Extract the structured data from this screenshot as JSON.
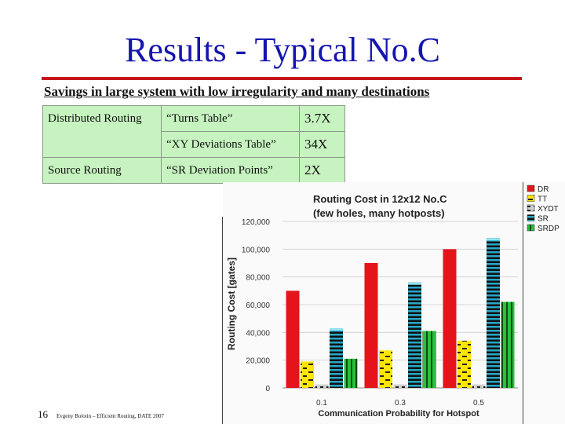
{
  "slide": {
    "title": "Results - Typical No.C",
    "subtitle": "Savings in large system with low irregularity and many destinations",
    "footer_page": "16",
    "footer_citation": "Evgeny Bolotin – Efficient Routing, DATE 2007"
  },
  "table": {
    "rows": [
      {
        "method": "Distributed Routing",
        "technique": "“Turns Table”",
        "ratio": "3.7X"
      },
      {
        "method": "",
        "technique": "“XY Deviations Table”",
        "ratio": "34X"
      },
      {
        "method": "Source Routing",
        "technique": "“SR Deviation Points”",
        "ratio": "2X"
      }
    ]
  },
  "colors": {
    "title": "#1515b0",
    "rule": "#c8161d",
    "table_bg": "#c6f3bf",
    "DR": "#e5141b",
    "TT": "#ffe500",
    "XYDT": "#c7c7c7",
    "SR": "#27a8c6",
    "SRDP": "#27c23a"
  },
  "chart_data": {
    "type": "bar",
    "title": "Routing Cost in 12x12 No.C",
    "subtitle": "(few holes, many hotposts)",
    "xlabel": "Communication Probability for Hotspot",
    "ylabel": "Routing Cost [gates]",
    "categories": [
      "0.1",
      "0.3",
      "0.5"
    ],
    "ylim": [
      0,
      120000
    ],
    "yticks": [
      "0",
      "20,000",
      "40,000",
      "60,000",
      "80,000",
      "100,000",
      "120,000"
    ],
    "legend_position": "top-right",
    "series": [
      {
        "name": "DR",
        "values": [
          70000,
          90000,
          100000
        ]
      },
      {
        "name": "TT",
        "values": [
          19000,
          27000,
          34000
        ]
      },
      {
        "name": "XYDT",
        "values": [
          2500,
          2500,
          2500
        ]
      },
      {
        "name": "SR",
        "values": [
          43000,
          76000,
          108000
        ]
      },
      {
        "name": "SRDP",
        "values": [
          21000,
          41000,
          62000
        ]
      }
    ]
  }
}
